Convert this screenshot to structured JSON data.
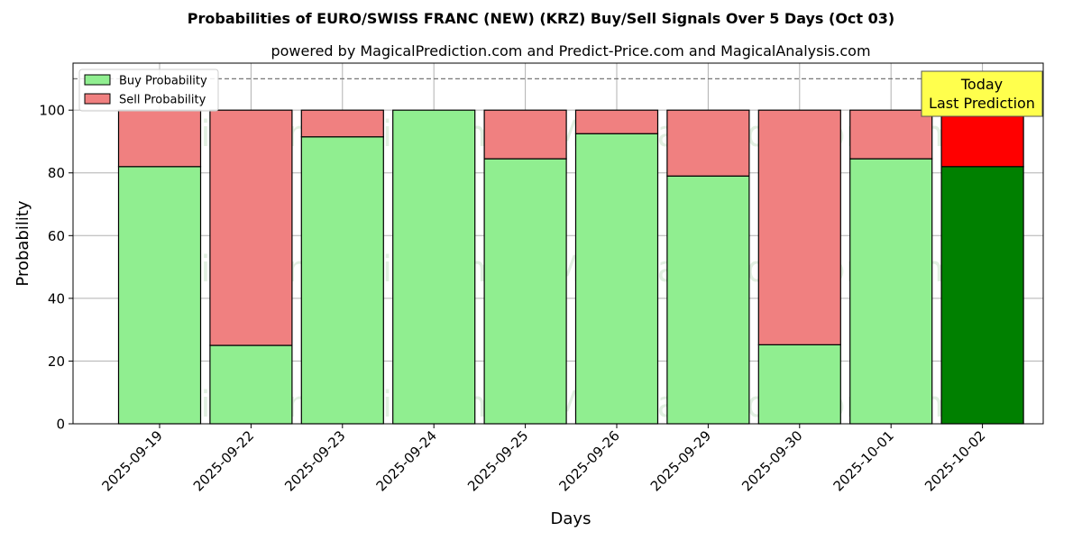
{
  "chart_data": {
    "type": "bar",
    "stacked": true,
    "title": "Probabilities of EURO/SWISS FRANC (NEW) (KRZ) Buy/Sell Signals Over 5 Days (Oct 03)",
    "subtitle": "powered by MagicalPrediction.com and Predict-Price.com and MagicalAnalysis.com",
    "xlabel": "Days",
    "ylabel": "Probability",
    "ylim": [
      0,
      115
    ],
    "yticks": [
      0,
      20,
      40,
      60,
      80,
      100
    ],
    "grid": true,
    "legend_position": "top-left",
    "reference_line": 110,
    "categories": [
      "2025-09-19",
      "2025-09-22",
      "2025-09-23",
      "2025-09-24",
      "2025-09-25",
      "2025-09-26",
      "2025-09-29",
      "2025-09-30",
      "2025-10-01",
      "2025-10-02"
    ],
    "series": [
      {
        "name": "Buy Probability",
        "values": [
          82,
          25,
          91.5,
          100,
          84.5,
          92.5,
          79,
          25.2,
          84.5,
          82
        ],
        "color": "#90ee90",
        "highlight_color": "#008000"
      },
      {
        "name": "Sell Probability",
        "values": [
          18,
          75,
          8.5,
          0,
          15.5,
          7.5,
          21,
          74.8,
          15.5,
          18
        ],
        "color": "#f08080",
        "highlight_color": "#ff0000"
      }
    ],
    "highlight_index": 9,
    "annotation": {
      "line1": "Today",
      "line2": "Last Prediction",
      "bg": "#ffff4d"
    },
    "watermarks": [
      "MagicalAnalysis.com",
      "MagicalPrediction.com"
    ]
  }
}
